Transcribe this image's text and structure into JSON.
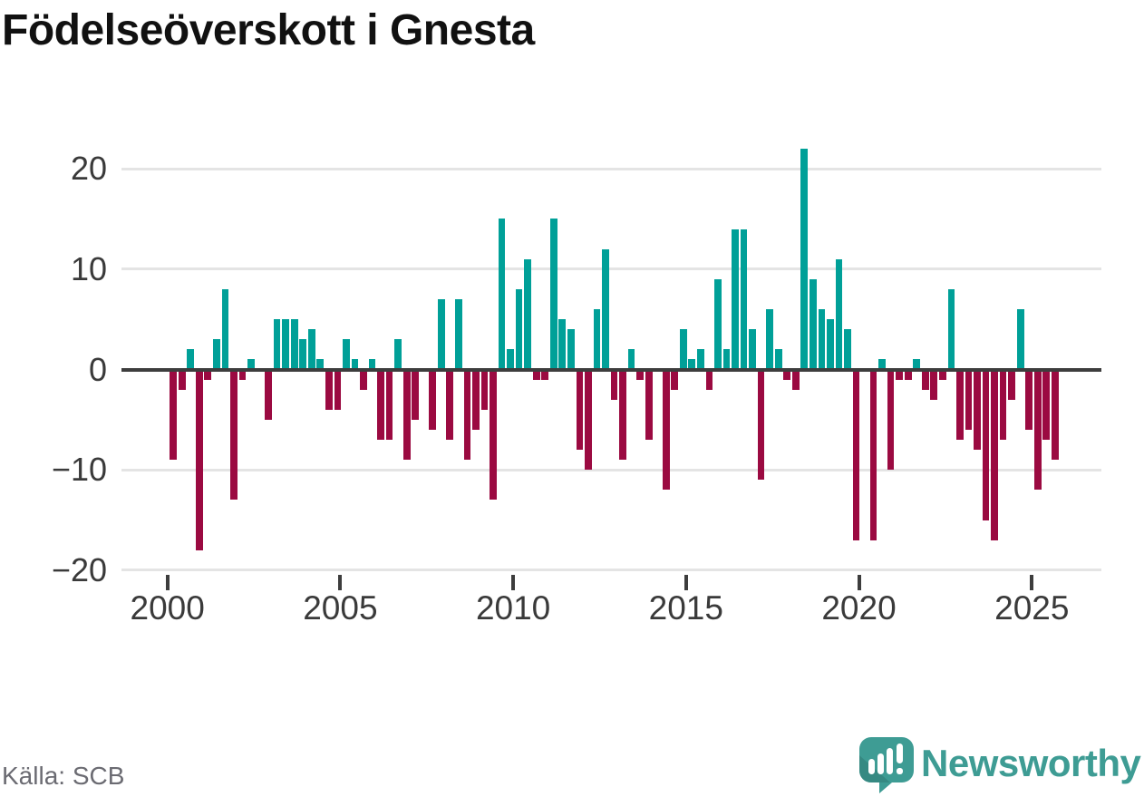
{
  "title": "Födelseöverskott i Gnesta",
  "source": "Källa: SCB",
  "brand": {
    "name": "Newsworthy",
    "color": "#3e9c94",
    "icon": "newsworthy-speech-bubble-chart-icon"
  },
  "colors": {
    "positive": "#00a098",
    "negative": "#9b0a41",
    "axis_line": "#3d3d3d",
    "gridline": "#e4e4e4",
    "tick_label": "#3a3a3a",
    "source_text": "#6b6b72",
    "title_text": "#111111",
    "background": "#ffffff"
  },
  "y_axis": {
    "tick_values": [
      20,
      10,
      0,
      -10,
      -20
    ],
    "tick_labels": [
      "20",
      "10",
      "0",
      "−10",
      "−20"
    ],
    "range": [
      -20,
      20
    ],
    "grid": true
  },
  "x_axis": {
    "tick_years": [
      "2000",
      "2005",
      "2010",
      "2015",
      "2020",
      "2025"
    ]
  },
  "chart_data": {
    "type": "bar",
    "title": "Födelseöverskott i Gnesta",
    "unit": "persons per quarter",
    "start_year": 2000,
    "start_quarter": 1,
    "end_year": 2025,
    "end_quarter": 3,
    "frequency": "quarterly",
    "xlabel": "",
    "ylabel": "",
    "ylim": [
      -20,
      23
    ],
    "legend": "none",
    "values": [
      -9,
      -2,
      2,
      -18,
      -1,
      3,
      8,
      -13,
      -1,
      1,
      0,
      -5,
      5,
      5,
      5,
      3,
      4,
      1,
      -4,
      -4,
      3,
      1,
      -2,
      1,
      -7,
      -7,
      3,
      -9,
      -5,
      0,
      -6,
      7,
      -7,
      7,
      -9,
      -6,
      -4,
      -13,
      15,
      2,
      8,
      11,
      -1,
      -1,
      15,
      5,
      4,
      -8,
      -10,
      6,
      12,
      -3,
      -9,
      2,
      -1,
      -7,
      0,
      -12,
      -2,
      4,
      1,
      2,
      -2,
      9,
      2,
      14,
      14,
      4,
      -11,
      6,
      2,
      -1,
      -2,
      22,
      9,
      6,
      5,
      11,
      4,
      -17,
      0,
      -17,
      1,
      -10,
      -1,
      -1,
      1,
      -2,
      -3,
      -1,
      8,
      -7,
      -6,
      -8,
      -15,
      -17,
      -7,
      -3,
      6,
      -6,
      -12,
      -7,
      -9
    ]
  }
}
